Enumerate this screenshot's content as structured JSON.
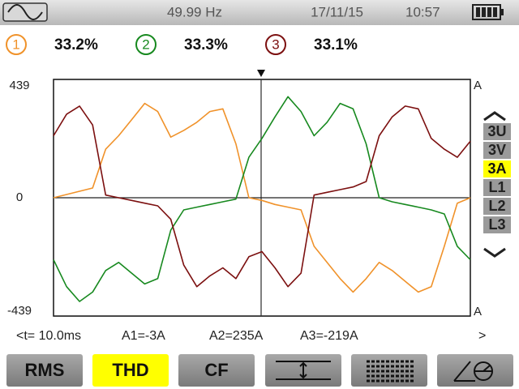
{
  "status_bar": {
    "frequency": "49.99 Hz",
    "date": "17/11/15",
    "time": "10:57"
  },
  "channels": [
    {
      "number": "1",
      "thd": "33.2%",
      "color": "#f0922a"
    },
    {
      "number": "2",
      "thd": "33.3%",
      "color": "#17891f"
    },
    {
      "number": "3",
      "thd": "33.1%",
      "color": "#7c1010"
    }
  ],
  "chart_data": {
    "type": "line",
    "ylim": [
      -439,
      439
    ],
    "yticks": [
      -439,
      0,
      439
    ],
    "y_unit": "A",
    "grid": true,
    "series": [
      {
        "color": "#f0922a",
        "values": [
          0,
          12,
          24,
          36,
          180,
          230,
          290,
          350,
          320,
          225,
          250,
          280,
          320,
          330,
          200,
          0,
          -10,
          -25,
          -35,
          -45,
          -180,
          -240,
          -300,
          -350,
          -300,
          -240,
          -270,
          -310,
          -350,
          -330,
          -180,
          -20,
          0
        ]
      },
      {
        "color": "#17891f",
        "values": [
          -230,
          -330,
          -385,
          -350,
          -270,
          -240,
          -280,
          -320,
          -300,
          -120,
          -45,
          -35,
          -25,
          -15,
          -5,
          150,
          220,
          300,
          375,
          320,
          230,
          280,
          350,
          330,
          200,
          0,
          -15,
          -25,
          -35,
          -45,
          -60,
          -180,
          -230
        ]
      },
      {
        "color": "#7c1010",
        "values": [
          230,
          310,
          340,
          270,
          10,
          0,
          -10,
          -20,
          -30,
          -80,
          -250,
          -330,
          -290,
          -260,
          -300,
          -219,
          -200,
          -260,
          -330,
          -280,
          10,
          20,
          30,
          40,
          60,
          230,
          300,
          340,
          330,
          220,
          180,
          150,
          210
        ]
      }
    ]
  },
  "side_menu": {
    "items": [
      "3U",
      "3V",
      "3A",
      "L1",
      "L2",
      "L3"
    ],
    "selected": 2
  },
  "cursor_readout": {
    "time": "<t= 10.0ms",
    "a1": "A1=-3A",
    "a2": "A2=235A",
    "a3": "A3=-219A",
    "next": ">"
  },
  "buttons": {
    "labels": [
      "RMS",
      "THD",
      "CF"
    ],
    "active": 1
  }
}
